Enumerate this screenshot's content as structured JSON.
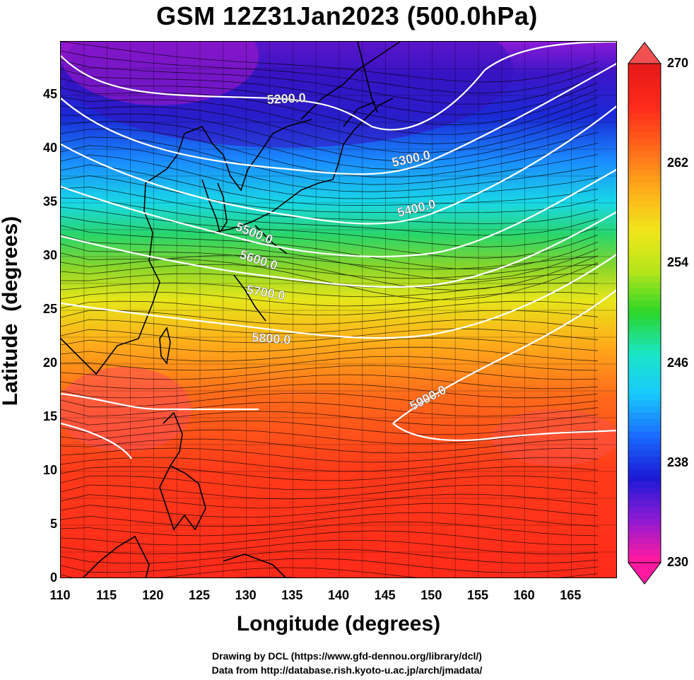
{
  "title": "GSM 12Z31Jan2023 (500.0hPa)",
  "map": {
    "xlabel": "Longitude (degrees)",
    "ylabel": "Latitude  (degrees)",
    "lon_range": [
      110,
      170
    ],
    "lat_range": [
      0,
      50
    ],
    "xticks": [
      "110",
      "115",
      "120",
      "125",
      "130",
      "135",
      "140",
      "145",
      "150",
      "155",
      "160",
      "165"
    ],
    "yticks": [
      "0",
      "5",
      "10",
      "15",
      "20",
      "25",
      "30",
      "35",
      "40",
      "45"
    ],
    "shaded_field": "temperature",
    "contour_field": "geopotential height",
    "vector_field": "wind streamlines",
    "contour_labels": [
      "5200.0",
      "5300.0",
      "5400.0",
      "5500.0",
      "5600.0",
      "5700.0",
      "5800.0",
      "5900.0"
    ],
    "colors": {
      "contour": "#ffffff",
      "streamline": "#000000",
      "coastline": "#000000",
      "grid": "#000000"
    }
  },
  "colorbar": {
    "range": [
      230,
      270
    ],
    "tick_labels": [
      "270",
      "262",
      "254",
      "246",
      "238",
      "230"
    ],
    "colors": [
      "#ff1aa0",
      "#8a1ad6",
      "#1a1ad6",
      "#1a6aff",
      "#19c8ff",
      "#1ae6c8",
      "#2ad62a",
      "#b4e61a",
      "#f0e61a",
      "#ffae1a",
      "#ff6a1a",
      "#ff2a1a",
      "#e61a1a"
    ]
  },
  "footer": {
    "line1": "Drawing by DCL (https://www.gfd-dennou.org/library/dcl/)",
    "line2": "Data from http://database.rish.kyoto-u.ac.jp/arch/jmadata/"
  }
}
